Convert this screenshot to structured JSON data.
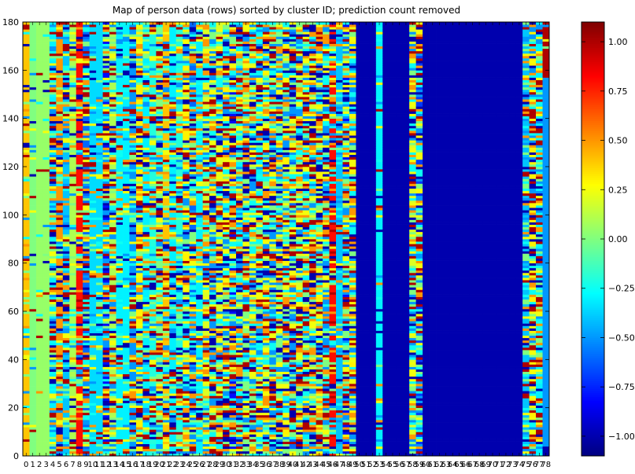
{
  "chart_data": {
    "type": "heatmap",
    "title": "Map of person data (rows) sorted by cluster ID; prediction count removed",
    "xlabel": "",
    "ylabel": "",
    "n_columns": 79,
    "n_rows": 180,
    "xlim": [
      0,
      79
    ],
    "ylim": [
      0,
      180
    ],
    "x_tick_labels": [
      "0",
      "1",
      "2",
      "3",
      "4",
      "5",
      "6",
      "7",
      "8",
      "9",
      "10",
      "11",
      "12",
      "13",
      "14",
      "15",
      "16",
      "17",
      "18",
      "19",
      "20",
      "21",
      "22",
      "23",
      "24",
      "25",
      "26",
      "27",
      "28",
      "29",
      "30",
      "31",
      "32",
      "33",
      "34",
      "35",
      "36",
      "37",
      "38",
      "39",
      "40",
      "41",
      "42",
      "43",
      "44",
      "45",
      "46",
      "47",
      "48",
      "49",
      "50",
      "51",
      "52",
      "53",
      "54",
      "55",
      "56",
      "57",
      "58",
      "59",
      "60",
      "61",
      "62",
      "63",
      "64",
      "65",
      "66",
      "67",
      "68",
      "69",
      "70",
      "71",
      "72",
      "73",
      "74",
      "75",
      "76",
      "77",
      "78"
    ],
    "y_ticks": [
      0,
      20,
      40,
      60,
      80,
      100,
      120,
      140,
      160,
      180
    ],
    "colormap": "jet",
    "colorbar": {
      "vmin": -1.1,
      "vmax": 1.1,
      "ticks": [
        -1.0,
        -0.75,
        -0.5,
        -0.25,
        0.0,
        0.25,
        0.5,
        0.75,
        1.0
      ],
      "tick_labels": [
        "−1.00",
        "−0.75",
        "−0.50",
        "−0.25",
        "0.00",
        "0.25",
        "0.50",
        "0.75",
        "1.00"
      ],
      "placement": "right"
    },
    "column_base_values": [
      0.4,
      0.0,
      0.05,
      0.05,
      -0.3,
      0.5,
      -0.4,
      0.1,
      0.8,
      -0.6,
      -0.35,
      -0.35,
      -0.8,
      0.1,
      -0.3,
      -0.3,
      -0.5,
      0.3,
      -0.3,
      -0.2,
      0.0,
      0.4,
      -0.3,
      -0.2,
      0.3,
      -0.6,
      -0.3,
      0.2,
      -0.5,
      0.2,
      0.3,
      -0.8,
      -0.3,
      0.0,
      0.2,
      -0.3,
      0.3,
      -0.5,
      0.0,
      0.3,
      -0.6,
      0.2,
      -0.3,
      0.2,
      0.3,
      -0.5,
      0.8,
      -0.4,
      -0.8,
      0.3,
      -1.0,
      -1.0,
      -1.0,
      -0.3,
      -1.0,
      -1.0,
      -1.0,
      -1.0,
      0.2,
      -0.7,
      -1.0,
      -1.0,
      -1.0,
      -1.0,
      -1.0,
      -1.0,
      -1.0,
      -1.0,
      -1.0,
      -1.0,
      -1.0,
      -1.0,
      -1.0,
      -1.0,
      -1.0,
      -0.4,
      0.3,
      -0.3,
      1.0
    ],
    "column_variability": [
      0.3,
      0.1,
      0.05,
      0.05,
      0.8,
      0.6,
      0.6,
      0.4,
      0.4,
      0.8,
      0.3,
      0.3,
      0.9,
      0.7,
      0.3,
      0.3,
      0.6,
      0.7,
      0.6,
      0.6,
      0.7,
      0.6,
      0.5,
      0.6,
      0.7,
      0.9,
      0.5,
      0.8,
      0.9,
      0.8,
      0.9,
      0.9,
      0.9,
      0.9,
      0.9,
      0.9,
      0.9,
      0.9,
      0.9,
      0.9,
      0.9,
      0.9,
      0.9,
      0.9,
      0.9,
      0.9,
      0.6,
      0.3,
      0.9,
      0.9,
      0.0,
      0.0,
      0.0,
      0.2,
      0.0,
      0.0,
      0.0,
      0.0,
      0.9,
      0.9,
      0.0,
      0.0,
      0.0,
      0.0,
      0.0,
      0.0,
      0.0,
      0.0,
      0.0,
      0.0,
      0.0,
      0.0,
      0.0,
      0.0,
      0.0,
      0.6,
      0.8,
      0.8,
      0.1
    ],
    "last_column_bottom_values": [
      -1.0,
      -0.5
    ]
  }
}
